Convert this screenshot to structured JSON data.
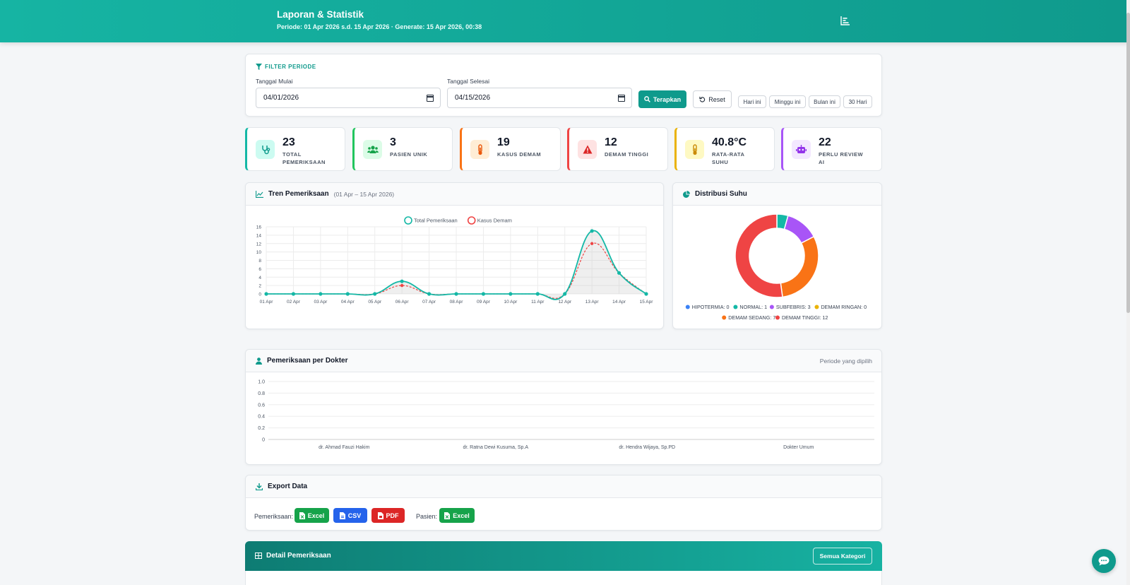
{
  "header": {
    "title": "Laporan & Statistik",
    "subtitle": "Periode: 01 Apr 2026 s.d. 15 Apr 2026  ·  Generate: 15 Apr 2026, 00:38"
  },
  "filter": {
    "section_label": "FILTER PERIODE",
    "start_label": "Tanggal Mulai",
    "start_value": "04/01/2026",
    "end_label": "Tanggal Selesai",
    "end_value": "04/15/2026",
    "apply_label": "Terapkan",
    "reset_label": "Reset",
    "quick": [
      "Hari ini",
      "Minggu ini",
      "Bulan ini",
      "30 Hari"
    ]
  },
  "stats": [
    {
      "value": "23",
      "label": "TOTAL PEMERIKSAAN",
      "color": "#14b8a6",
      "icon": "stethoscope-icon"
    },
    {
      "value": "3",
      "label": "PASIEN UNIK",
      "color": "#22c55e",
      "icon": "users-icon"
    },
    {
      "value": "19",
      "label": "KASUS DEMAM",
      "color": "#f97316",
      "icon": "thermometer-icon"
    },
    {
      "value": "12",
      "label": "DEMAM TINGGI",
      "color": "#ef4444",
      "icon": "warning-icon"
    },
    {
      "value": "40.8°C",
      "label": "RATA-RATA SUHU",
      "color": "#eab308",
      "icon": "temperature-icon"
    },
    {
      "value": "22",
      "label": "PERLU REVIEW AI",
      "color": "#a855f7",
      "icon": "robot-icon"
    }
  ],
  "trend": {
    "title": "Tren Pemeriksaan",
    "subtitle": "(01 Apr – 15 Apr 2026)"
  },
  "distribution": {
    "title": "Distribusi Suhu"
  },
  "doctor": {
    "title": "Pemeriksaan per Dokter",
    "right_label": "Periode yang dipilih"
  },
  "export": {
    "title": "Export Data",
    "pemeriksaan_label": "Pemeriksaan:",
    "pasien_label": "Pasien:",
    "excel_label": "Excel",
    "csv_label": "CSV",
    "pdf_label": "PDF",
    "pasien_excel_label": "Excel",
    "excel_color": "#16a34a",
    "csv_color": "#2563eb",
    "pdf_color": "#dc2626"
  },
  "detail": {
    "title": "Detail Pemeriksaan",
    "category_button": "Semua Kategori"
  },
  "chart_data": [
    {
      "type": "line",
      "categories": [
        "01 Apr",
        "02 Apr",
        "03 Apr",
        "04 Apr",
        "05 Apr",
        "06 Apr",
        "07 Apr",
        "08 Apr",
        "09 Apr",
        "10 Apr",
        "11 Apr",
        "12 Apr",
        "13 Apr",
        "14 Apr",
        "15 Apr"
      ],
      "series": [
        {
          "name": "Total Pemeriksaan",
          "color": "#14b8a6",
          "values": [
            0,
            0,
            0,
            0,
            0,
            3,
            0,
            0,
            0,
            0,
            0,
            0,
            15,
            5,
            0
          ]
        },
        {
          "name": "Kasus Demam",
          "color": "#ef4444",
          "values": [
            0,
            0,
            0,
            0,
            0,
            2,
            0,
            0,
            0,
            0,
            0,
            0,
            12,
            5,
            0
          ]
        }
      ],
      "yticks": [
        "0",
        "2",
        "4",
        "6",
        "8",
        "10",
        "12",
        "14",
        "16"
      ],
      "ylim": [
        0,
        16
      ],
      "legend": "top",
      "grid": true
    },
    {
      "type": "pie",
      "variant": "doughnut",
      "slices": [
        {
          "label": "HIPOTERMIA",
          "value": 0,
          "color": "#3b82f6"
        },
        {
          "label": "NORMAL",
          "value": 1,
          "color": "#14b8a6"
        },
        {
          "label": "SUBFEBRIS",
          "value": 3,
          "color": "#a855f7"
        },
        {
          "label": "DEMAM RINGAN",
          "value": 0,
          "color": "#eab308"
        },
        {
          "label": "DEMAM SEDANG",
          "value": 7,
          "color": "#f97316"
        },
        {
          "label": "DEMAM TINGGI",
          "value": 12,
          "color": "#ef4444"
        }
      ],
      "legend": "bottom"
    },
    {
      "type": "bar",
      "categories": [
        "dr. Ahmad Fauzi Hakim",
        "dr. Ratna Dewi Kusuma, Sp.A",
        "dr. Hendra Wijaya, Sp.PD",
        "Dokter Umum"
      ],
      "values": [
        0,
        0,
        0,
        0
      ],
      "yticks": [
        "0",
        "0.2",
        "0.4",
        "0.6",
        "0.8",
        "1.0"
      ],
      "ylim": [
        0,
        1
      ],
      "grid": true
    }
  ]
}
